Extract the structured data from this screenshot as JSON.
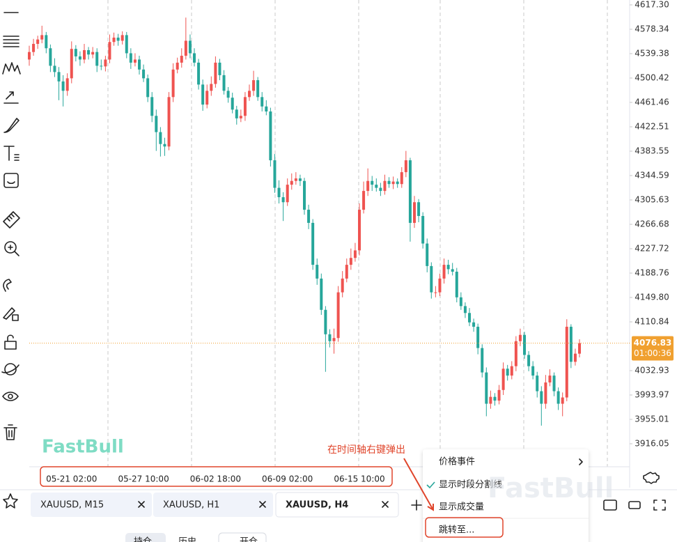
{
  "chart_data": {
    "type": "candlestick",
    "categories": [
      null,
      null,
      null,
      null,
      null,
      null,
      null,
      null,
      null,
      null,
      "05-21 02:00",
      null,
      null,
      null,
      null,
      null,
      null,
      null,
      null,
      null,
      null,
      null,
      null,
      null,
      null,
      null,
      null,
      "05-27 10:00",
      null,
      null,
      null,
      null,
      null,
      null,
      null,
      null,
      null,
      null,
      null,
      null,
      null,
      null,
      null,
      null,
      "06-02 18:00",
      null,
      null,
      null,
      null,
      null,
      null,
      null,
      null,
      null,
      null,
      null,
      null,
      null,
      null,
      null,
      null,
      "06-09 02:00",
      null,
      null,
      null,
      null,
      null,
      null,
      null,
      null,
      null,
      null,
      null,
      null,
      null,
      null,
      null,
      null,
      "06-15 10:00",
      null,
      null,
      null,
      null,
      null,
      null,
      null,
      null,
      null,
      null,
      null,
      null,
      null,
      null,
      null,
      null,
      null,
      null,
      null,
      null,
      null,
      null,
      null,
      null,
      null,
      null,
      null,
      null,
      null,
      null,
      null,
      null,
      null,
      null,
      null,
      null,
      null,
      null,
      null,
      null,
      null,
      null,
      null,
      null,
      null,
      null,
      null,
      null,
      null,
      null,
      null,
      null
    ],
    "open": [
      4530,
      4542,
      4555,
      4562,
      4569,
      4548,
      4520,
      4510,
      4495,
      4480,
      4500,
      4547,
      4535,
      4530,
      4545,
      4538,
      4542,
      4520,
      4519,
      4530,
      4558,
      4565,
      4560,
      4569,
      4540,
      4525,
      4530,
      4514,
      4500,
      4470,
      4440,
      4414,
      4395,
      4391,
      4470,
      4514,
      4525,
      4536,
      4560,
      4540,
      4525,
      4490,
      4458,
      4480,
      4491,
      4525,
      4505,
      4480,
      4469,
      4450,
      4436,
      4440,
      4470,
      4480,
      4497,
      4470,
      4455,
      4447,
      4369,
      4325,
      4310,
      4302,
      4330,
      4336,
      4340,
      4336,
      4290,
      4269,
      4202,
      4180,
      4130,
      4091,
      4080,
      4085,
      4158,
      4180,
      4202,
      4213,
      4225,
      4290,
      4320,
      4336,
      4330,
      4325,
      4320,
      4336,
      4331,
      4335,
      4331,
      4350,
      4369,
      4269,
      4302,
      4280,
      4236,
      4200,
      4158,
      4158,
      4180,
      4202,
      4195,
      4191,
      4150,
      4136,
      4125,
      4110,
      4103,
      4069,
      4030,
      3980,
      3991,
      3985,
      4002,
      4036,
      4025,
      4040,
      4080,
      4090,
      4058,
      4040,
      4025,
      4000,
      3980,
      4014,
      4025,
      4000,
      3980,
      3990,
      4103,
      4047,
      4060
    ],
    "high": [
      4552,
      4563,
      4568,
      4584,
      4574,
      4554,
      4532,
      4518,
      4505,
      4508,
      4559,
      4553,
      4543,
      4555,
      4550,
      4550,
      4548,
      4530,
      4536,
      4570,
      4573,
      4571,
      4575,
      4574,
      4548,
      4540,
      4536,
      4522,
      4506,
      4478,
      4450,
      4422,
      4405,
      4478,
      4524,
      4533,
      4548,
      4597,
      4570,
      4548,
      4531,
      4498,
      4490,
      4503,
      4535,
      4531,
      4513,
      4486,
      4477,
      4456,
      4450,
      4478,
      4490,
      4512,
      4502,
      4478,
      4465,
      4453,
      4379,
      4337,
      4318,
      4340,
      4348,
      4350,
      4346,
      4341,
      4298,
      4275,
      4212,
      4188,
      4136,
      4099,
      4100,
      4168,
      4192,
      4212,
      4228,
      4237,
      4300,
      4335,
      4356,
      4344,
      4340,
      4333,
      4346,
      4342,
      4343,
      4340,
      4358,
      4384,
      4373,
      4312,
      4307,
      4286,
      4244,
      4206,
      4168,
      4188,
      4212,
      4210,
      4205,
      4197,
      4158,
      4142,
      4133,
      4116,
      4108,
      4075,
      4038,
      4001,
      3997,
      4010,
      4046,
      4042,
      4048,
      4088,
      4100,
      4095,
      4064,
      4048,
      4031,
      4008,
      4026,
      4035,
      4030,
      4006,
      3998,
      4115,
      4107,
      4068,
      4083
    ],
    "low": [
      4520,
      4536,
      4547,
      4556,
      4540,
      4510,
      4502,
      4465,
      4455,
      4472,
      4492,
      4527,
      4520,
      4524,
      4530,
      4532,
      4510,
      4513,
      4511,
      4524,
      4552,
      4552,
      4554,
      4532,
      4515,
      4519,
      4506,
      4494,
      4462,
      4430,
      4384,
      4375,
      4376,
      4385,
      4462,
      4508,
      4517,
      4530,
      4532,
      4519,
      4482,
      4448,
      4452,
      4472,
      4485,
      4497,
      4474,
      4461,
      4444,
      4426,
      4430,
      4432,
      4464,
      4472,
      4464,
      4447,
      4441,
      4359,
      4317,
      4300,
      4272,
      4296,
      4322,
      4330,
      4328,
      4282,
      4259,
      4194,
      4170,
      4122,
      4031,
      4070,
      4060,
      4079,
      4150,
      4174,
      4194,
      4207,
      4217,
      4284,
      4312,
      4320,
      4319,
      4312,
      4314,
      4325,
      4323,
      4325,
      4325,
      4342,
      4239,
      4261,
      4270,
      4228,
      4190,
      4148,
      4150,
      4152,
      4172,
      4187,
      4185,
      4142,
      4130,
      4117,
      4104,
      4095,
      4059,
      4022,
      3960,
      3972,
      3977,
      3979,
      3994,
      4017,
      4019,
      4032,
      4072,
      4052,
      4032,
      4019,
      3990,
      3945,
      3972,
      4008,
      3992,
      3970,
      3960,
      3984,
      4037,
      4041,
      4054
    ],
    "close": [
      4542,
      4555,
      4562,
      4569,
      4548,
      4520,
      4510,
      4495,
      4480,
      4500,
      4547,
      4535,
      4530,
      4545,
      4538,
      4542,
      4520,
      4519,
      4530,
      4558,
      4565,
      4560,
      4569,
      4540,
      4525,
      4530,
      4514,
      4500,
      4470,
      4440,
      4414,
      4395,
      4391,
      4470,
      4514,
      4525,
      4536,
      4560,
      4540,
      4525,
      4490,
      4458,
      4480,
      4491,
      4525,
      4505,
      4480,
      4469,
      4450,
      4436,
      4440,
      4470,
      4480,
      4497,
      4470,
      4455,
      4447,
      4369,
      4325,
      4310,
      4302,
      4330,
      4336,
      4340,
      4336,
      4290,
      4269,
      4202,
      4180,
      4130,
      4091,
      4080,
      4085,
      4158,
      4180,
      4202,
      4213,
      4225,
      4290,
      4320,
      4336,
      4330,
      4325,
      4320,
      4336,
      4331,
      4335,
      4331,
      4350,
      4369,
      4269,
      4302,
      4280,
      4236,
      4200,
      4158,
      4158,
      4180,
      4202,
      4195,
      4191,
      4150,
      4136,
      4125,
      4110,
      4103,
      4069,
      4030,
      3980,
      3991,
      3985,
      4002,
      4036,
      4025,
      4040,
      4080,
      4090,
      4058,
      4040,
      4025,
      4000,
      3980,
      4014,
      4025,
      4000,
      3980,
      3990,
      4103,
      4047,
      4060,
      4076.83
    ],
    "up_color": "#ef5350",
    "down_color": "#26a69a",
    "ylim": [
      3879.3,
      4625.1
    ],
    "yticks": [
      {
        "value": 4617.3,
        "label": "4617.30"
      },
      4578.34,
      4539.38,
      4500.42,
      4461.46,
      4422.51,
      4383.55,
      4344.59,
      4305.63,
      4266.68,
      4227.72,
      4188.76,
      {
        "value": 4149.8,
        "label": "4149.80"
      },
      4110.84,
      4032.93,
      3993.97,
      3955.01,
      3916.05
    ],
    "last_price": 4076.83,
    "countdown": "01:00:36",
    "last_color": "#f0a030",
    "watermark": "FastBull"
  },
  "annotation": "在时间轴右键弹出",
  "context_menu": {
    "items": [
      "价格事件",
      "显示时段分割线",
      "显示成交量",
      "跳转至..."
    ]
  },
  "tabs": [
    "XAUUSD, M15",
    "XAUUSD, H1",
    "XAUUSD, H4"
  ],
  "bottom_bar": [
    "持仓",
    "历史",
    "开仓"
  ]
}
